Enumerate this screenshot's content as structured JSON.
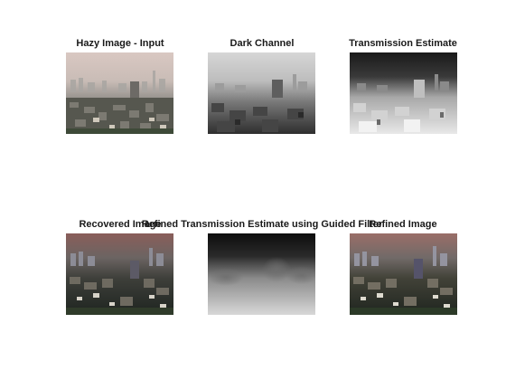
{
  "figure": {
    "panels": [
      {
        "title": "Hazy Image - Input",
        "content": "hazy city skyline photograph"
      },
      {
        "title": "Dark Channel",
        "content": "grayscale dark channel map"
      },
      {
        "title": "Transmission Estimate",
        "content": "grayscale transmission map"
      },
      {
        "title": "Recovered Image",
        "content": "dehazed city skyline photograph"
      },
      {
        "title": "Refined Transmission Estimate using Guided Filter",
        "content": "smooth grayscale refined transmission map"
      },
      {
        "title": "Refined Image",
        "content": "dehazed city skyline photograph, refined"
      }
    ]
  }
}
